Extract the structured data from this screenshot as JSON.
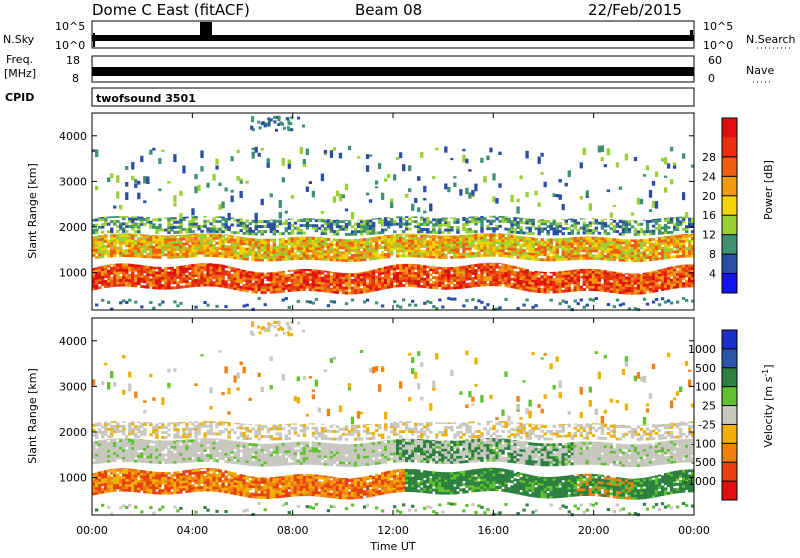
{
  "header": {
    "station": "Dome C East (fitACF)",
    "beam": "Beam 08",
    "date": "22/Feb/2015"
  },
  "sky_panel": {
    "left_label": "N.Sky",
    "right_label": "N.Search",
    "tick_top": "10^5",
    "tick_bottom": "10^0"
  },
  "freq_panel": {
    "label_top": "Freq.",
    "label_unit": "[MHz]",
    "tick_top": "18",
    "tick_bottom": "8",
    "right_label": "Nave",
    "right_tick_top": "60",
    "right_tick_bottom": "0"
  },
  "cpid_panel": {
    "label": "CPID",
    "program": "twofsound 3501"
  },
  "chart_data": [
    {
      "type": "heatmap",
      "parameter": "Power",
      "ylabel": "Slant Range [km]",
      "ylim": [
        180,
        4500
      ],
      "y_ticks": [
        "1000",
        "2000",
        "3000",
        "4000"
      ],
      "colorbar_label": "Power [dB]",
      "colorbar_ticks": [
        "4",
        "8",
        "12",
        "16",
        "20",
        "24",
        "28"
      ],
      "colorbar_colors": [
        "#1414f0",
        "#2a4ea6",
        "#3f9070",
        "#9ad036",
        "#f2d400",
        "#f09a10",
        "#ee6010",
        "#e83010",
        "#e01010"
      ],
      "bands": [
        {
          "range_km": [
            600,
            1100
          ],
          "level": "high"
        },
        {
          "range_km": [
            1300,
            1800
          ],
          "level": "medium"
        },
        {
          "range_km": [
            1800,
            2300
          ],
          "level": "low"
        }
      ]
    },
    {
      "type": "heatmap",
      "parameter": "Velocity",
      "xlabel": "Time UT",
      "ylabel": "Slant Range [km]",
      "ylim": [
        180,
        4500
      ],
      "y_ticks": [
        "1000",
        "2000",
        "3000",
        "4000"
      ],
      "x_ticks": [
        "00:00",
        "04:00",
        "08:00",
        "12:00",
        "16:00",
        "20:00",
        "00:00"
      ],
      "colorbar_label": "Velocity [m s^-1]",
      "colorbar_ticks": [
        "1000",
        "500",
        "100",
        "25",
        "-25",
        "-100",
        "-500",
        "-1000"
      ],
      "colorbar_colors": [
        "#1a30c8",
        "#2a56a8",
        "#2e8040",
        "#60c030",
        "#c8c8c0",
        "#f0b000",
        "#f08010",
        "#e84010",
        "#e01010"
      ]
    }
  ]
}
